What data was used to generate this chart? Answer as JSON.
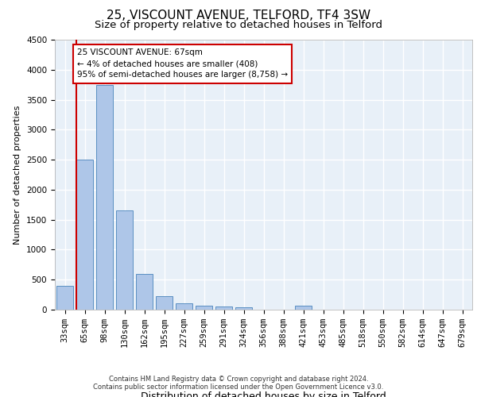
{
  "title": "25, VISCOUNT AVENUE, TELFORD, TF4 3SW",
  "subtitle": "Size of property relative to detached houses in Telford",
  "xlabel": "Distribution of detached houses by size in Telford",
  "ylabel": "Number of detached properties",
  "categories": [
    "33sqm",
    "65sqm",
    "98sqm",
    "130sqm",
    "162sqm",
    "195sqm",
    "227sqm",
    "259sqm",
    "291sqm",
    "324sqm",
    "356sqm",
    "388sqm",
    "421sqm",
    "453sqm",
    "485sqm",
    "518sqm",
    "550sqm",
    "582sqm",
    "614sqm",
    "647sqm",
    "679sqm"
  ],
  "values": [
    400,
    2500,
    3750,
    1650,
    600,
    230,
    110,
    60,
    50,
    40,
    0,
    0,
    60,
    0,
    0,
    0,
    0,
    0,
    0,
    0,
    0
  ],
  "bar_color": "#aec6e8",
  "bar_edge_color": "#5a8fc2",
  "ylim": [
    0,
    4500
  ],
  "yticks": [
    0,
    500,
    1000,
    1500,
    2000,
    2500,
    3000,
    3500,
    4000,
    4500
  ],
  "property_line_color": "#cc0000",
  "annotation_text": "25 VISCOUNT AVENUE: 67sqm\n← 4% of detached houses are smaller (408)\n95% of semi-detached houses are larger (8,758) →",
  "annotation_box_color": "#cc0000",
  "footer_line1": "Contains HM Land Registry data © Crown copyright and database right 2024.",
  "footer_line2": "Contains public sector information licensed under the Open Government Licence v3.0.",
  "bg_color": "#e8f0f8",
  "grid_color": "#ffffff",
  "title_fontsize": 11,
  "subtitle_fontsize": 9.5,
  "xlabel_fontsize": 9,
  "ylabel_fontsize": 8,
  "tick_fontsize": 7.5,
  "annotation_fontsize": 7.5,
  "footer_fontsize": 6
}
